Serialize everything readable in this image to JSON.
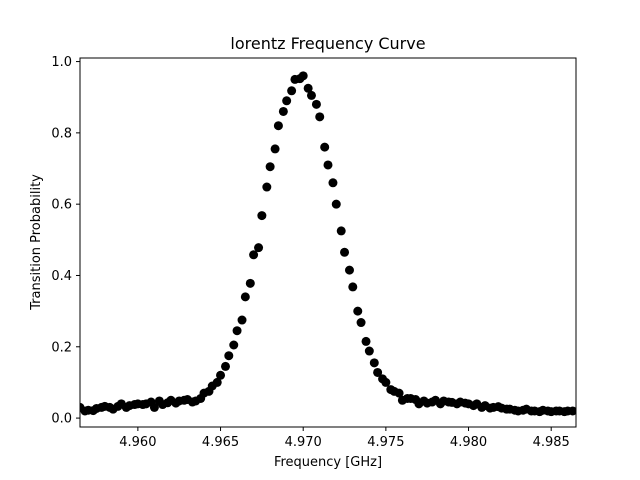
{
  "chart_data": {
    "type": "scatter",
    "title": "lorentz Frequency Curve",
    "xlabel": "Frequency [GHz]",
    "ylabel": "Transition Probability",
    "xlim": [
      4.9565,
      4.9865
    ],
    "ylim": [
      -0.025,
      1.01
    ],
    "xticks": [
      4.96,
      4.965,
      4.97,
      4.975,
      4.98,
      4.985
    ],
    "xtick_labels": [
      "4.960",
      "4.965",
      "4.970",
      "4.975",
      "4.980",
      "4.985"
    ],
    "yticks": [
      0.0,
      0.2,
      0.4,
      0.6,
      0.8,
      1.0
    ],
    "ytick_labels": [
      "0.0",
      "0.2",
      "0.4",
      "0.6",
      "0.8",
      "1.0"
    ],
    "grid": false,
    "marker_color": "#000000",
    "series": [
      {
        "x": [
          4.9565,
          4.9568,
          4.957,
          4.9573,
          4.9575,
          4.9578,
          4.958,
          4.9583,
          4.9585,
          4.9588,
          4.959,
          4.9593,
          4.9595,
          4.9598,
          4.96,
          4.9603,
          4.9605,
          4.9608,
          4.961,
          4.9613,
          4.9615,
          4.9618,
          4.962,
          4.9623,
          4.9625,
          4.9628,
          4.963,
          4.9633,
          4.9635,
          4.9638,
          4.964,
          4.9643,
          4.9645,
          4.9648,
          4.965,
          4.9653,
          4.9655,
          4.9658,
          4.966,
          4.9663,
          4.9665,
          4.9668,
          4.967,
          4.9673,
          4.9675,
          4.9678,
          4.968,
          4.9683,
          4.9685,
          4.9688,
          4.969,
          4.9693,
          4.9695,
          4.9698,
          4.97,
          4.9703,
          4.9705,
          4.9708,
          4.971,
          4.9713,
          4.9715,
          4.9718,
          4.972,
          4.9723,
          4.9725,
          4.9728,
          4.973,
          4.9733,
          4.9735,
          4.9738,
          4.974,
          4.9743,
          4.9745,
          4.9748,
          4.975,
          4.9753,
          4.9755,
          4.9758,
          4.976,
          4.9763,
          4.9765,
          4.9768,
          4.977,
          4.9773,
          4.9775,
          4.9778,
          4.978,
          4.9783,
          4.9785,
          4.9788,
          4.979,
          4.9793,
          4.9795,
          4.9798,
          4.98,
          4.9803,
          4.9805,
          4.9808,
          4.981,
          4.9813,
          4.9815,
          4.9818,
          4.982,
          4.9823,
          4.9825,
          4.9828,
          4.983,
          4.9833,
          4.9835,
          4.9838,
          4.984,
          4.9843,
          4.9845,
          4.9848,
          4.985,
          4.9853,
          4.9855,
          4.9858,
          4.986,
          4.9863
        ],
        "y": [
          0.03,
          0.02,
          0.022,
          0.021,
          0.027,
          0.03,
          0.033,
          0.03,
          0.025,
          0.033,
          0.04,
          0.03,
          0.035,
          0.038,
          0.04,
          0.038,
          0.04,
          0.045,
          0.03,
          0.048,
          0.038,
          0.043,
          0.05,
          0.042,
          0.048,
          0.05,
          0.052,
          0.045,
          0.048,
          0.055,
          0.07,
          0.075,
          0.09,
          0.1,
          0.12,
          0.145,
          0.175,
          0.205,
          0.245,
          0.275,
          0.34,
          0.378,
          0.458,
          0.478,
          0.568,
          0.648,
          0.705,
          0.755,
          0.82,
          0.86,
          0.89,
          0.918,
          0.95,
          0.952,
          0.96,
          0.925,
          0.905,
          0.88,
          0.845,
          0.76,
          0.71,
          0.66,
          0.6,
          0.525,
          0.465,
          0.415,
          0.368,
          0.3,
          0.268,
          0.215,
          0.188,
          0.155,
          0.128,
          0.11,
          0.1,
          0.08,
          0.075,
          0.07,
          0.05,
          0.055,
          0.055,
          0.052,
          0.04,
          0.048,
          0.042,
          0.045,
          0.05,
          0.04,
          0.048,
          0.045,
          0.044,
          0.04,
          0.045,
          0.042,
          0.04,
          0.035,
          0.04,
          0.03,
          0.035,
          0.028,
          0.03,
          0.032,
          0.028,
          0.025,
          0.025,
          0.022,
          0.02,
          0.022,
          0.025,
          0.02,
          0.02,
          0.018,
          0.022,
          0.02,
          0.018,
          0.02,
          0.02,
          0.018,
          0.02,
          0.02
        ]
      }
    ]
  }
}
